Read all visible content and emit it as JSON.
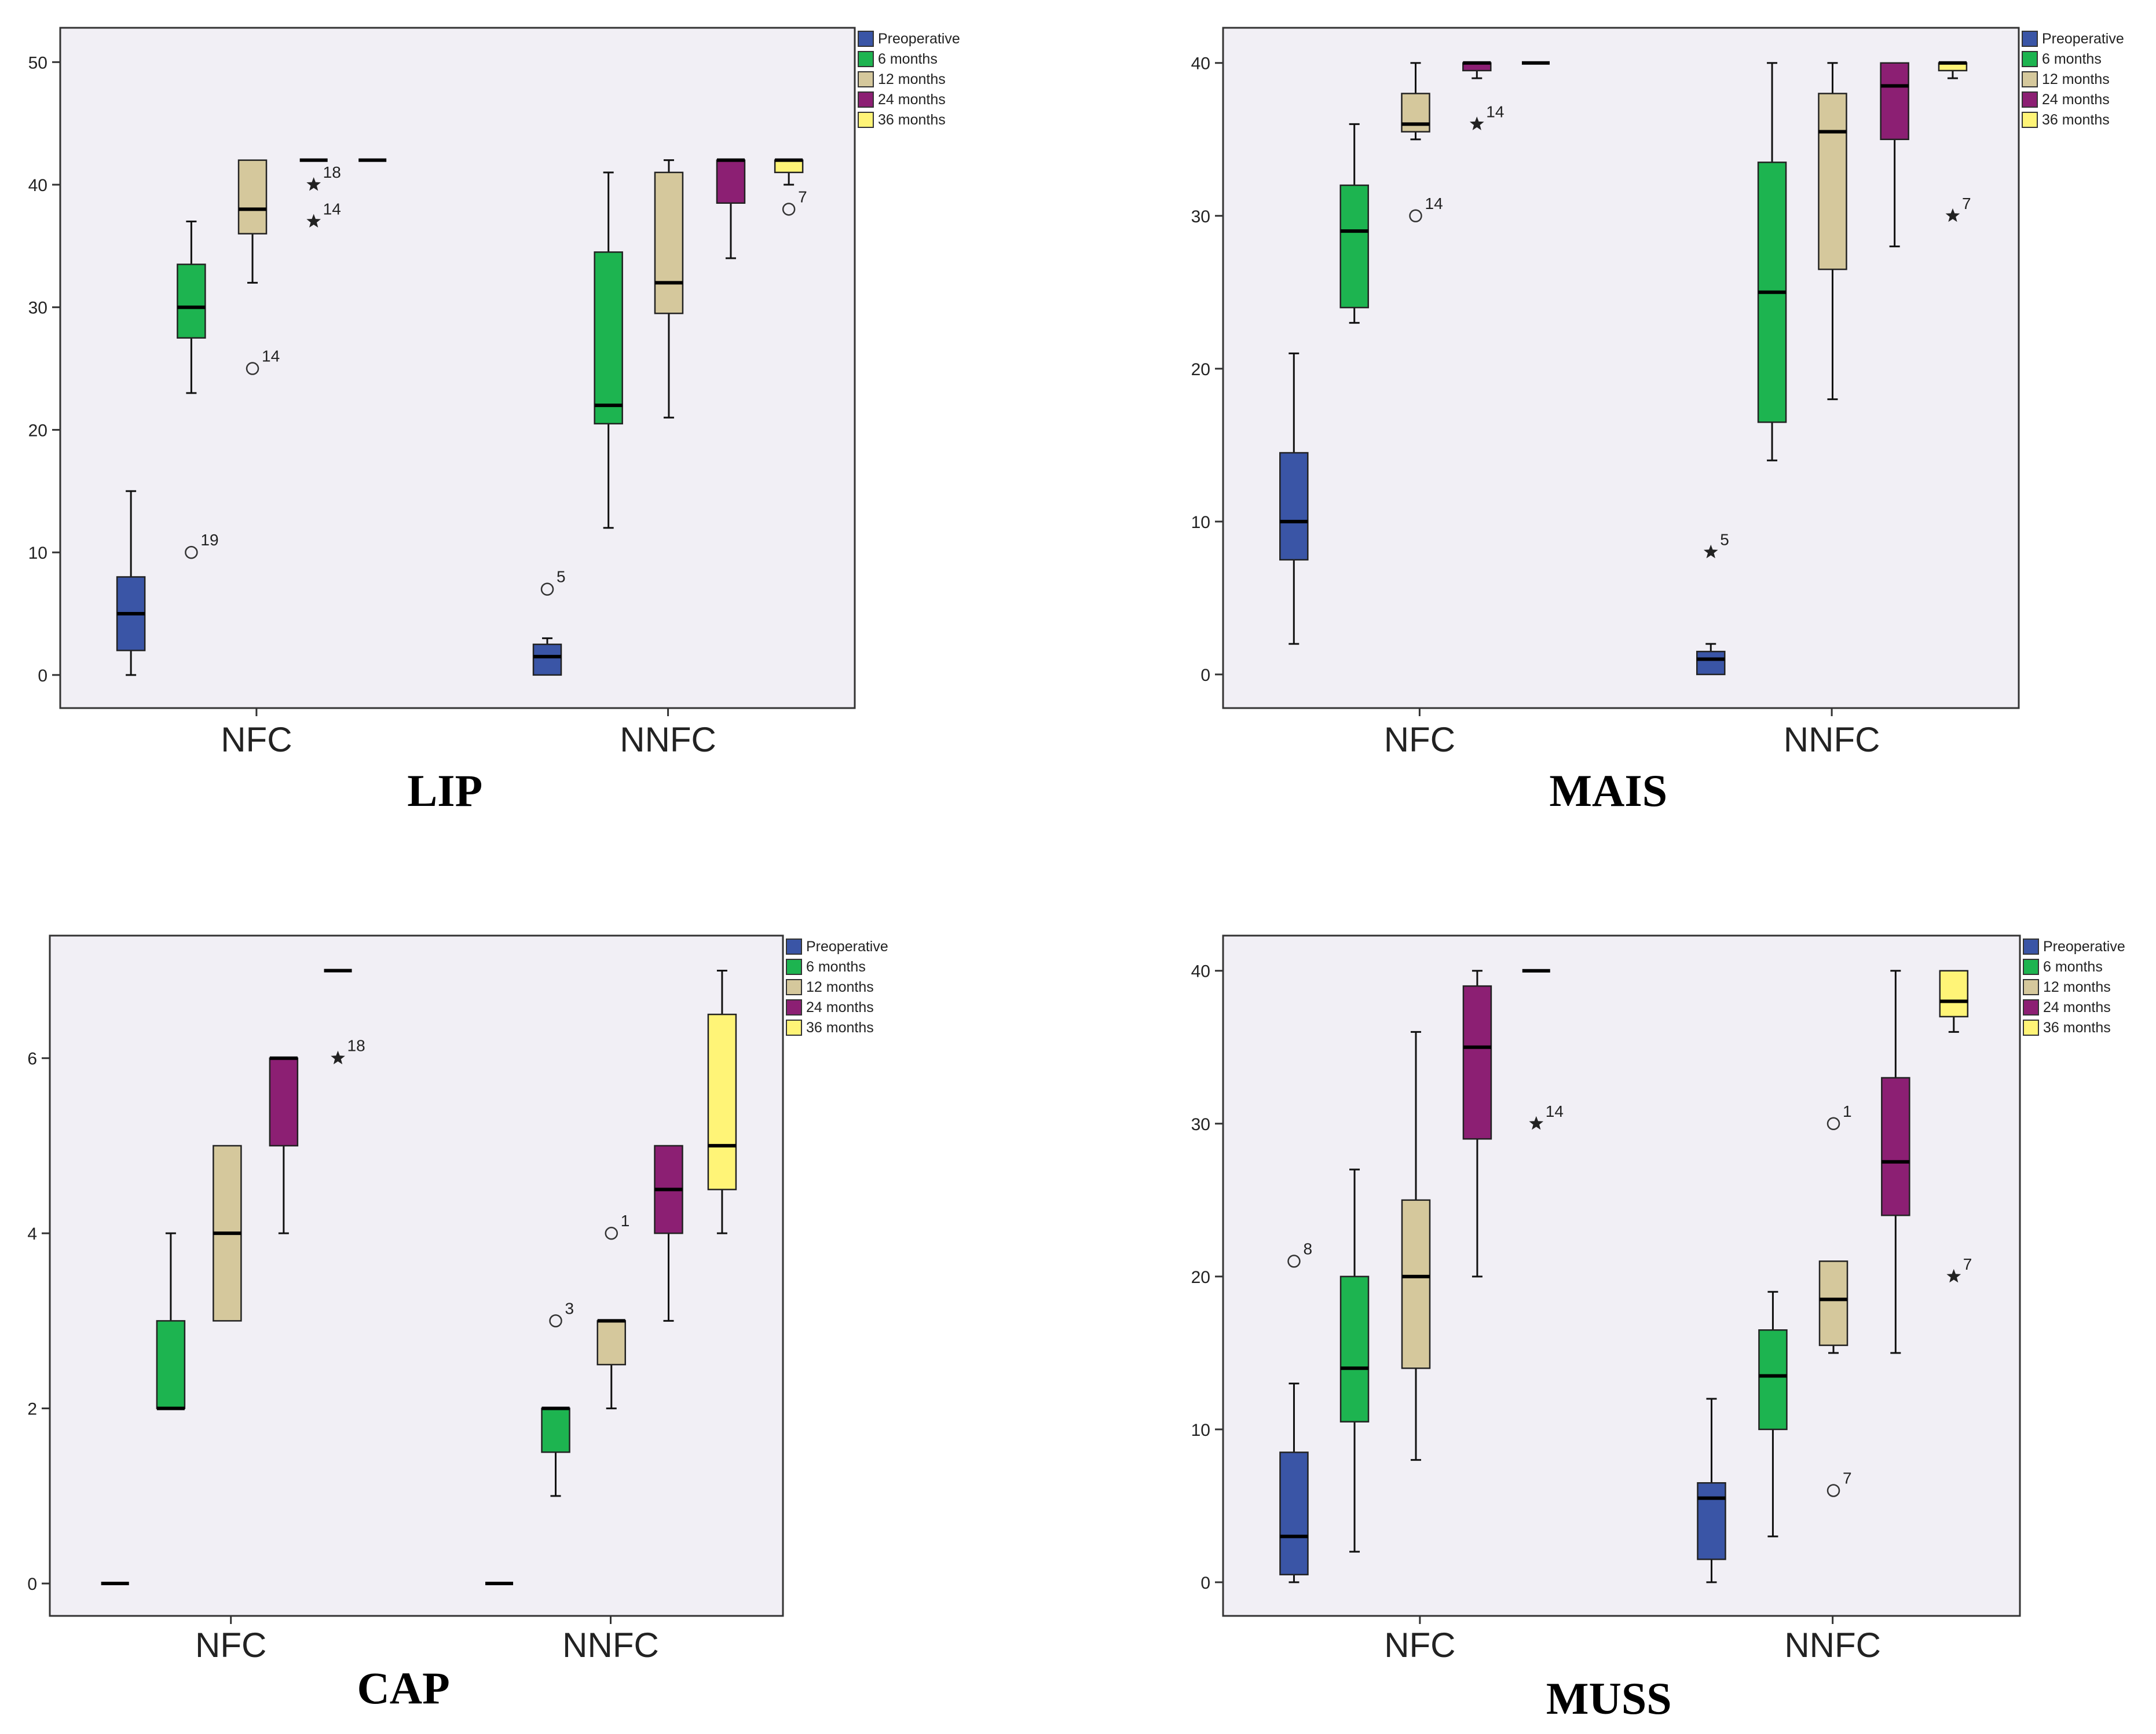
{
  "group_colors": {
    "Preoperative": "#3a55a6",
    "6 months": "#1db450",
    "12 months": "#d5c89c",
    "24 months": "#8c1f73",
    "36 months": "#fff477"
  },
  "plot_background": "#f1eff5",
  "chart_data": [
    {
      "type": "boxplot",
      "title": "LIP",
      "categories": [
        "NFC",
        "NNFC"
      ],
      "legend": [
        "Preoperative",
        "6 months",
        "12 months",
        "24 months",
        "36 months"
      ],
      "ylim": [
        -2.7,
        52.8
      ],
      "yticks": [
        0,
        10,
        20,
        30,
        40,
        50
      ],
      "boxes": [
        {
          "category": "NFC",
          "group": "Preoperative",
          "min": 0,
          "q1": 2,
          "median": 5,
          "q3": 8,
          "max": 15
        },
        {
          "category": "NFC",
          "group": "6 months",
          "min": 23,
          "q1": 27.5,
          "median": 30,
          "q3": 33.5,
          "max": 37
        },
        {
          "category": "NFC",
          "group": "12 months",
          "min": 32,
          "q1": 36,
          "median": 38,
          "q3": 42,
          "max": 42
        },
        {
          "category": "NFC",
          "group": "24 months",
          "min": 42,
          "q1": 42,
          "median": 42,
          "q3": 42,
          "max": 42
        },
        {
          "category": "NFC",
          "group": "36 months",
          "min": 42,
          "q1": 42,
          "median": 42,
          "q3": 42,
          "max": 42
        },
        {
          "category": "NNFC",
          "group": "Preoperative",
          "min": 0,
          "q1": 0,
          "median": 1.5,
          "q3": 2.5,
          "max": 3
        },
        {
          "category": "NNFC",
          "group": "6 months",
          "min": 12,
          "q1": 20.5,
          "median": 22,
          "q3": 34.5,
          "max": 41
        },
        {
          "category": "NNFC",
          "group": "12 months",
          "min": 21,
          "q1": 29.5,
          "median": 32,
          "q3": 41,
          "max": 42
        },
        {
          "category": "NNFC",
          "group": "24 months",
          "min": 34,
          "q1": 38.5,
          "median": 42,
          "q3": 42,
          "max": 42
        },
        {
          "category": "NNFC",
          "group": "36 months",
          "min": 40,
          "q1": 41,
          "median": 42,
          "q3": 42,
          "max": 42
        }
      ],
      "outliers": [
        {
          "category": "NFC",
          "group": "6 months",
          "value": 10,
          "label": "19",
          "symbol": "circle"
        },
        {
          "category": "NFC",
          "group": "12 months",
          "value": 25,
          "label": "14",
          "symbol": "circle"
        },
        {
          "category": "NFC",
          "group": "24 months",
          "value": 40,
          "label": "18",
          "symbol": "star"
        },
        {
          "category": "NFC",
          "group": "24 months",
          "value": 37,
          "label": "14",
          "symbol": "star"
        },
        {
          "category": "NNFC",
          "group": "Preoperative",
          "value": 7,
          "label": "5",
          "symbol": "circle"
        },
        {
          "category": "NNFC",
          "group": "36 months",
          "value": 38,
          "label": "7",
          "symbol": "circle"
        }
      ]
    },
    {
      "type": "boxplot",
      "title": "MAIS",
      "categories": [
        "NFC",
        "NNFC"
      ],
      "legend": [
        "Preoperative",
        "6 months",
        "12 months",
        "24 months",
        "36 months"
      ],
      "ylim": [
        -2.2,
        42.3
      ],
      "yticks": [
        0,
        10,
        20,
        30,
        40
      ],
      "boxes": [
        {
          "category": "NFC",
          "group": "Preoperative",
          "min": 2,
          "q1": 7.5,
          "median": 10,
          "q3": 14.5,
          "max": 21
        },
        {
          "category": "NFC",
          "group": "6 months",
          "min": 23,
          "q1": 24,
          "median": 29,
          "q3": 32,
          "max": 36
        },
        {
          "category": "NFC",
          "group": "12 months",
          "min": 35,
          "q1": 35.5,
          "median": 36,
          "q3": 38,
          "max": 40
        },
        {
          "category": "NFC",
          "group": "24 months",
          "min": 39,
          "q1": 39.5,
          "median": 40,
          "q3": 40,
          "max": 40
        },
        {
          "category": "NFC",
          "group": "36 months",
          "min": 40,
          "q1": 40,
          "median": 40,
          "q3": 40,
          "max": 40
        },
        {
          "category": "NNFC",
          "group": "Preoperative",
          "min": 0,
          "q1": 0,
          "median": 1,
          "q3": 1.5,
          "max": 2
        },
        {
          "category": "NNFC",
          "group": "6 months",
          "min": 14,
          "q1": 16.5,
          "median": 25,
          "q3": 33.5,
          "max": 40
        },
        {
          "category": "NNFC",
          "group": "12 months",
          "min": 18,
          "q1": 26.5,
          "median": 35.5,
          "q3": 38,
          "max": 40
        },
        {
          "category": "NNFC",
          "group": "24 months",
          "min": 28,
          "q1": 35,
          "median": 38.5,
          "q3": 40,
          "max": 40
        },
        {
          "category": "NNFC",
          "group": "36 months",
          "min": 39,
          "q1": 39.5,
          "median": 40,
          "q3": 40,
          "max": 40
        }
      ],
      "outliers": [
        {
          "category": "NFC",
          "group": "12 months",
          "value": 30,
          "label": "14",
          "symbol": "circle"
        },
        {
          "category": "NFC",
          "group": "24 months",
          "value": 36,
          "label": "14",
          "symbol": "star"
        },
        {
          "category": "NNFC",
          "group": "Preoperative",
          "value": 8,
          "label": "5",
          "symbol": "star"
        },
        {
          "category": "NNFC",
          "group": "36 months",
          "value": 30,
          "label": "7",
          "symbol": "star"
        }
      ]
    },
    {
      "type": "boxplot",
      "title": "CAP",
      "categories": [
        "NFC",
        "NNFC"
      ],
      "legend": [
        "Preoperative",
        "6 months",
        "12 months",
        "24 months",
        "36 months"
      ],
      "ylim": [
        -0.37,
        7.4
      ],
      "yticks": [
        0,
        2,
        4,
        6
      ],
      "boxes": [
        {
          "category": "NFC",
          "group": "Preoperative",
          "min": 0,
          "q1": 0,
          "median": 0,
          "q3": 0,
          "max": 0
        },
        {
          "category": "NFC",
          "group": "6 months",
          "min": 2,
          "q1": 2,
          "median": 2,
          "q3": 3,
          "max": 4
        },
        {
          "category": "NFC",
          "group": "12 months",
          "min": 3,
          "q1": 3,
          "median": 4,
          "q3": 5,
          "max": 5
        },
        {
          "category": "NFC",
          "group": "24 months",
          "min": 4,
          "q1": 5,
          "median": 6,
          "q3": 6,
          "max": 6
        },
        {
          "category": "NFC",
          "group": "36 months",
          "min": 7,
          "q1": 7,
          "median": 7,
          "q3": 7,
          "max": 7
        },
        {
          "category": "NNFC",
          "group": "Preoperative",
          "min": 0,
          "q1": 0,
          "median": 0,
          "q3": 0,
          "max": 0
        },
        {
          "category": "NNFC",
          "group": "6 months",
          "min": 1,
          "q1": 1.5,
          "median": 2,
          "q3": 2,
          "max": 2
        },
        {
          "category": "NNFC",
          "group": "12 months",
          "min": 2,
          "q1": 2.5,
          "median": 3,
          "q3": 3,
          "max": 3
        },
        {
          "category": "NNFC",
          "group": "24 months",
          "min": 3,
          "q1": 4,
          "median": 4.5,
          "q3": 5,
          "max": 5
        },
        {
          "category": "NNFC",
          "group": "36 months",
          "min": 4,
          "q1": 4.5,
          "median": 5,
          "q3": 6.5,
          "max": 7
        }
      ],
      "outliers": [
        {
          "category": "NFC",
          "group": "36 months",
          "value": 6,
          "label": "18",
          "symbol": "star"
        },
        {
          "category": "NNFC",
          "group": "6 months",
          "value": 3,
          "label": "3",
          "symbol": "circle"
        },
        {
          "category": "NNFC",
          "group": "12 months",
          "value": 4,
          "label": "1",
          "symbol": "circle"
        }
      ]
    },
    {
      "type": "boxplot",
      "title": "MUSS",
      "categories": [
        "NFC",
        "NNFC"
      ],
      "legend": [
        "Preoperative",
        "6 months",
        "12 months",
        "24 months",
        "36 months"
      ],
      "ylim": [
        -2.2,
        42.3
      ],
      "yticks": [
        0,
        10,
        20,
        30,
        40
      ],
      "boxes": [
        {
          "category": "NFC",
          "group": "Preoperative",
          "min": 0,
          "q1": 0.5,
          "median": 3,
          "q3": 8.5,
          "max": 13
        },
        {
          "category": "NFC",
          "group": "6 months",
          "min": 2,
          "q1": 10.5,
          "median": 14,
          "q3": 20,
          "max": 27
        },
        {
          "category": "NFC",
          "group": "12 months",
          "min": 8,
          "q1": 14,
          "median": 20,
          "q3": 25,
          "max": 36
        },
        {
          "category": "NFC",
          "group": "24 months",
          "min": 20,
          "q1": 29,
          "median": 35,
          "q3": 39,
          "max": 40
        },
        {
          "category": "NFC",
          "group": "36 months",
          "min": 40,
          "q1": 40,
          "median": 40,
          "q3": 40,
          "max": 40
        },
        {
          "category": "NNFC",
          "group": "Preoperative",
          "min": 0,
          "q1": 1.5,
          "median": 5.5,
          "q3": 6.5,
          "max": 12
        },
        {
          "category": "NNFC",
          "group": "6 months",
          "min": 3,
          "q1": 10,
          "median": 13.5,
          "q3": 16.5,
          "max": 19
        },
        {
          "category": "NNFC",
          "group": "12 months",
          "min": 15,
          "q1": 15.5,
          "median": 18.5,
          "q3": 21,
          "max": 21
        },
        {
          "category": "NNFC",
          "group": "24 months",
          "min": 15,
          "q1": 24,
          "median": 27.5,
          "q3": 33,
          "max": 40
        },
        {
          "category": "NNFC",
          "group": "36 months",
          "min": 36,
          "q1": 37,
          "median": 38,
          "q3": 40,
          "max": 40
        }
      ],
      "outliers": [
        {
          "category": "NFC",
          "group": "Preoperative",
          "value": 21,
          "label": "8",
          "symbol": "circle"
        },
        {
          "category": "NFC",
          "group": "36 months",
          "value": 30,
          "label": "14",
          "symbol": "star"
        },
        {
          "category": "NNFC",
          "group": "12 months",
          "value": 30,
          "label": "1",
          "symbol": "circle"
        },
        {
          "category": "NNFC",
          "group": "12 months",
          "value": 6,
          "label": "7",
          "symbol": "circle"
        },
        {
          "category": "NNFC",
          "group": "36 months",
          "value": 20,
          "label": "7",
          "symbol": "star"
        }
      ]
    }
  ]
}
